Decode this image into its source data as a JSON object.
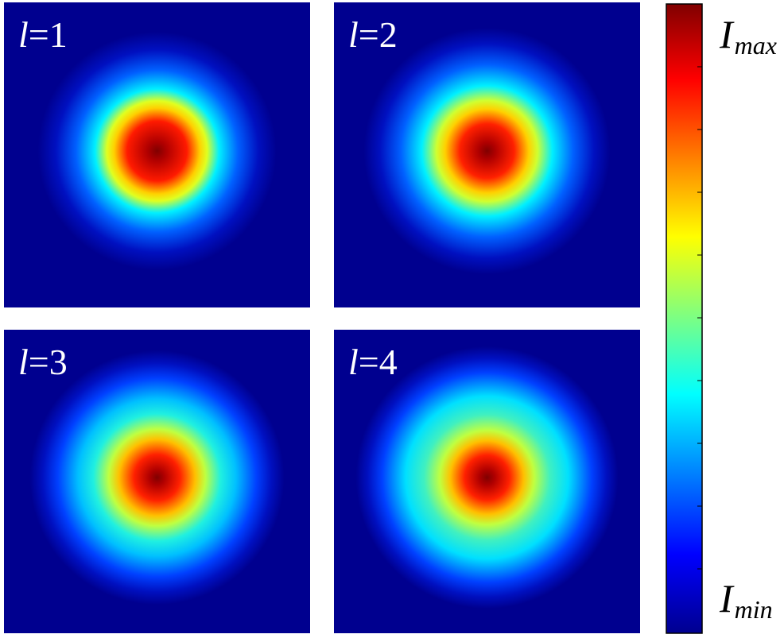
{
  "panels": [
    {
      "variable": "l",
      "value": "=1"
    },
    {
      "variable": "l",
      "value": "=2"
    },
    {
      "variable": "l",
      "value": "=3"
    },
    {
      "variable": "l",
      "value": "=4"
    }
  ],
  "colorbar": {
    "max_label": {
      "symbol": "I",
      "subscript": "max"
    },
    "min_label": {
      "symbol": "I",
      "subscript": "min"
    }
  }
}
